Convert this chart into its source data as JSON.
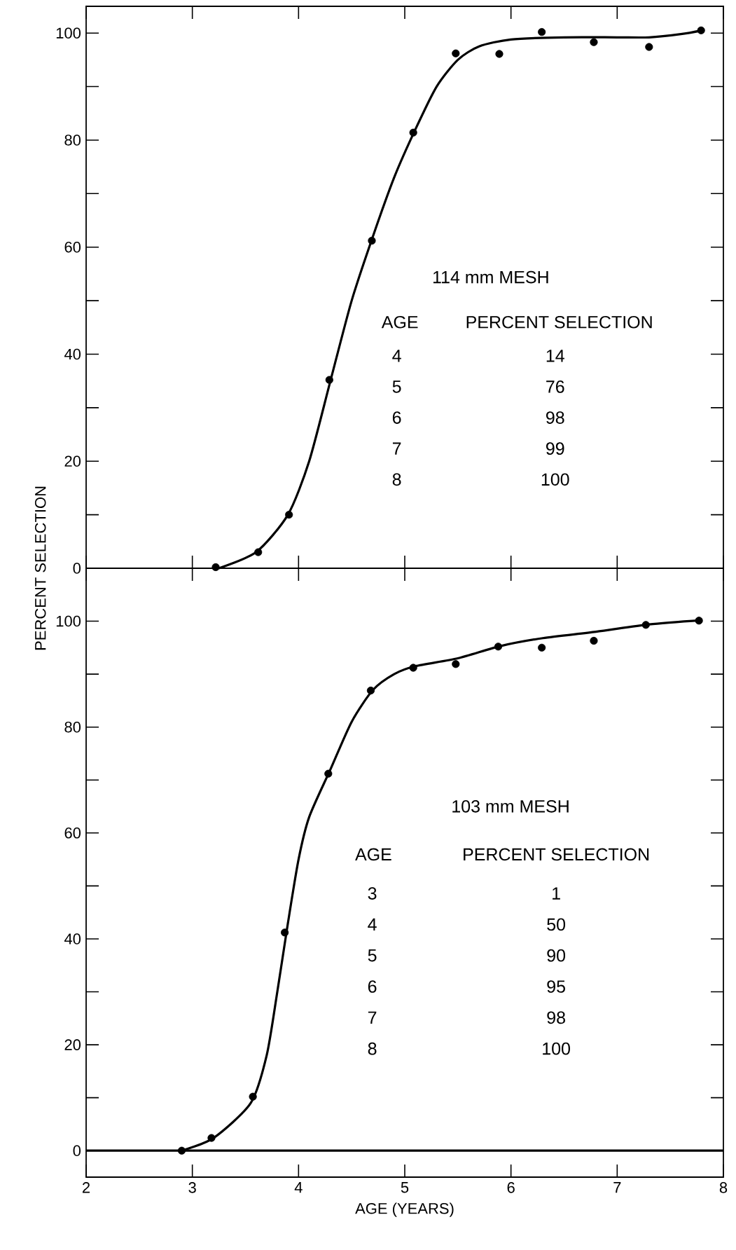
{
  "chart_data": [
    {
      "type": "scatter",
      "ylabel": "PERCENT SELECTION",
      "xlim": [
        2,
        8
      ],
      "ylim": [
        0,
        105
      ],
      "xticks": [
        2,
        3,
        4,
        5,
        6,
        7,
        8
      ],
      "yticks": [
        0,
        20,
        40,
        60,
        80,
        100
      ],
      "tick_labels": "y",
      "annotations": [
        "114 mm MESH",
        "AGE",
        "PERCENT SELECTION",
        "4",
        "14",
        "5",
        "76",
        "6",
        "98",
        "7",
        "99",
        "8",
        "100"
      ],
      "series": [
        {
          "marker": "circle",
          "color": "#000000",
          "x": [
            3.22,
            3.62,
            3.91,
            4.29,
            4.69,
            5.08,
            5.48,
            5.89,
            6.29,
            6.78,
            7.3,
            7.79
          ],
          "values": [
            0.2,
            3.0,
            10.0,
            35.2,
            61.2,
            81.4,
            96.2,
            96.1,
            100.2,
            98.3,
            97.4,
            100.5
          ]
        },
        {
          "type": "line",
          "marker": "none",
          "color": "#000000",
          "x": [
            3.25,
            3.6,
            3.9,
            4.1,
            4.3,
            4.5,
            4.7,
            4.9,
            5.1,
            5.3,
            5.5,
            5.7,
            6.0,
            6.5,
            7.0,
            7.3,
            7.6,
            7.8
          ],
          "values": [
            0,
            3,
            10,
            20,
            35,
            50,
            62,
            73,
            82,
            90,
            95,
            97.5,
            98.8,
            99.2,
            99.2,
            99.2,
            99.8,
            100.5
          ]
        }
      ]
    },
    {
      "type": "scatter",
      "xlabel": "AGE (YEARS)",
      "xlim": [
        2,
        8
      ],
      "ylim": [
        -5,
        110
      ],
      "xticks": [
        2,
        3,
        4,
        5,
        6,
        7,
        8
      ],
      "yticks": [
        0,
        20,
        40,
        60,
        80,
        100
      ],
      "annotations": [
        "103 mm MESH",
        "AGE",
        "PERCENT SELECTION",
        "3",
        "1",
        "4",
        "50",
        "5",
        "90",
        "6",
        "95",
        "7",
        "98",
        "8",
        "100"
      ],
      "series": [
        {
          "marker": "circle",
          "color": "#000000",
          "x": [
            2.9,
            3.18,
            3.57,
            3.87,
            4.28,
            4.68,
            5.08,
            5.48,
            5.88,
            6.29,
            6.78,
            7.27,
            7.77
          ],
          "values": [
            0,
            2.4,
            10.2,
            41.2,
            71.2,
            86.9,
            91.2,
            91.9,
            95.2,
            95.0,
            96.3,
            99.3,
            100.1
          ]
        },
        {
          "type": "line",
          "marker": "none",
          "color": "#000000",
          "x": [
            2.9,
            3.2,
            3.55,
            3.7,
            3.8,
            3.9,
            4.0,
            4.1,
            4.3,
            4.5,
            4.7,
            4.9,
            5.1,
            5.5,
            5.9,
            6.3,
            6.8,
            7.3,
            7.8
          ],
          "values": [
            0,
            2.4,
            9,
            18,
            30,
            43,
            55,
            63,
            72,
            81,
            87,
            90,
            91.5,
            93,
            95.3,
            96.8,
            98,
            99.4,
            100.2
          ]
        },
        {
          "type": "line",
          "marker": "none",
          "color": "#000000",
          "x": [
            2,
            8
          ],
          "values": [
            0,
            0
          ]
        }
      ]
    }
  ]
}
